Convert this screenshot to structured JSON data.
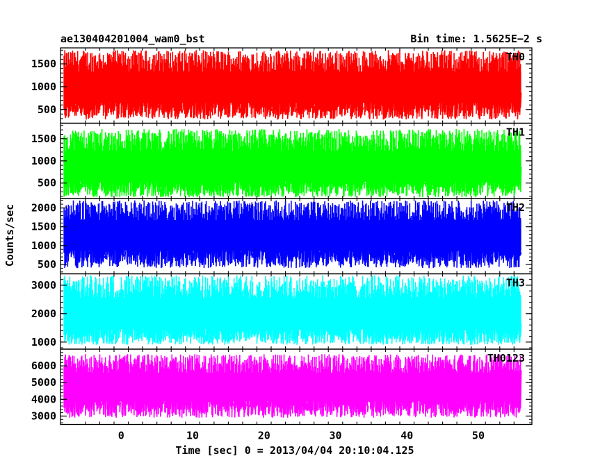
{
  "chart_data": {
    "type": "line",
    "title_left": "ae130404201004_wam0_bst",
    "title_right": "Bin time: 1.5625E−2 s",
    "ylabel": "Counts/sec",
    "xlabel": "Time [sec] 0 = 2013/04/04 20:10:04.125",
    "x_range": [
      -8.5,
      57.5
    ],
    "x_data_range": [
      -8.0,
      56.0
    ],
    "x_ticks": [
      0,
      10,
      20,
      30,
      40,
      50
    ],
    "grid": false,
    "panels": [
      {
        "name": "TH0",
        "color": "#ff0000",
        "ylim": [
          200,
          1850
        ],
        "yticks": [
          500,
          1000,
          1500
        ],
        "mean": 950,
        "low": 280,
        "high": 1800
      },
      {
        "name": "TH1",
        "color": "#00ff00",
        "ylim": [
          150,
          1850
        ],
        "yticks": [
          500,
          1000,
          1500
        ],
        "mean": 820,
        "low": 180,
        "high": 1720
      },
      {
        "name": "TH2",
        "color": "#0000ff",
        "ylim": [
          250,
          2250
        ],
        "yticks": [
          500,
          1000,
          1500,
          2000
        ],
        "mean": 1250,
        "low": 400,
        "high": 2200
      },
      {
        "name": "TH3",
        "color": "#00ffff",
        "ylim": [
          750,
          3400
        ],
        "yticks": [
          1000,
          2000,
          3000
        ],
        "mean": 1900,
        "low": 900,
        "high": 3350
      },
      {
        "name": "TH0123",
        "color": "#ff00ff",
        "ylim": [
          2500,
          7000
        ],
        "yticks": [
          3000,
          4000,
          5000,
          6000
        ],
        "mean": 4700,
        "low": 2900,
        "high": 6700
      }
    ]
  }
}
